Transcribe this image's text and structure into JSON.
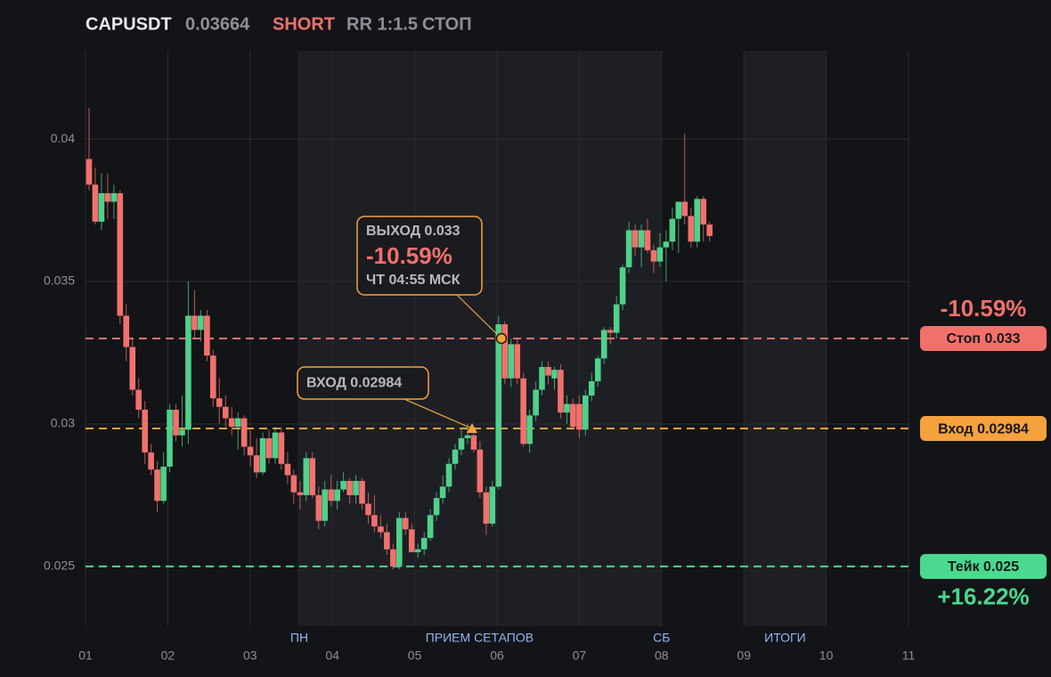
{
  "header": {
    "symbol": "CAPUSDT",
    "price": "0.03664",
    "side": "SHORT",
    "rr": "RR 1:1.5",
    "status": "СТОП"
  },
  "chart_data": {
    "type": "candlestick",
    "x": [
      1.043,
      1.118,
      1.194,
      1.269,
      1.345,
      1.42,
      1.495,
      1.571,
      1.646,
      1.722,
      1.797,
      1.872,
      1.948,
      2.023,
      2.099,
      2.174,
      2.249,
      2.325,
      2.4,
      2.476,
      2.551,
      2.626,
      2.702,
      2.777,
      2.853,
      2.928,
      3.003,
      3.079,
      3.154,
      3.23,
      3.305,
      3.38,
      3.456,
      3.531,
      3.607,
      3.682,
      3.757,
      3.833,
      3.908,
      3.984,
      4.059,
      4.134,
      4.21,
      4.285,
      4.361,
      4.436,
      4.511,
      4.587,
      4.662,
      4.738,
      4.813,
      4.888,
      4.964,
      5.039,
      5.115,
      5.19,
      5.265,
      5.341,
      5.416,
      5.492,
      5.567,
      5.642,
      5.718,
      5.793,
      5.869,
      5.944,
      6.019,
      6.095,
      6.17,
      6.246,
      6.321,
      6.396,
      6.472,
      6.547,
      6.623,
      6.698,
      6.773,
      6.849,
      6.924,
      7.0,
      7.075,
      7.15,
      7.226,
      7.301,
      7.377,
      7.452,
      7.527,
      7.603,
      7.678,
      7.754,
      7.829,
      7.904,
      7.98,
      8.055,
      8.131,
      8.206,
      8.281,
      8.357,
      8.432,
      8.508,
      8.583
    ],
    "open": [
      0.0393,
      0.0384,
      0.0371,
      0.0381,
      0.0378,
      0.0381,
      0.0338,
      0.0327,
      0.0312,
      0.0305,
      0.029,
      0.0284,
      0.0273,
      0.0285,
      0.0305,
      0.0296,
      0.0298,
      0.0338,
      0.0333,
      0.0338,
      0.0324,
      0.0309,
      0.0306,
      0.0302,
      0.0299,
      0.0302,
      0.0292,
      0.0289,
      0.0283,
      0.0295,
      0.0288,
      0.0297,
      0.0286,
      0.0282,
      0.0276,
      0.0275,
      0.0288,
      0.0275,
      0.0266,
      0.0277,
      0.0273,
      0.0277,
      0.028,
      0.0275,
      0.028,
      0.0272,
      0.0268,
      0.0264,
      0.0262,
      0.0256,
      0.025,
      0.0267,
      0.0263,
      0.0255,
      0.0256,
      0.026,
      0.0268,
      0.0274,
      0.0278,
      0.0286,
      0.0291,
      0.0295,
      0.0296,
      0.0291,
      0.0276,
      0.0265,
      0.0278,
      0.0335,
      0.0316,
      0.0328,
      0.0316,
      0.0293,
      0.0303,
      0.0312,
      0.032,
      0.0316,
      0.0319,
      0.0304,
      0.0307,
      0.0307,
      0.0298,
      0.031,
      0.0315,
      0.0323,
      0.0333,
      0.0332,
      0.0342,
      0.0355,
      0.0368,
      0.0362,
      0.0368,
      0.0361,
      0.0357,
      0.0362,
      0.0364,
      0.0372,
      0.0378,
      0.0373,
      0.0364,
      0.0379,
      0.037
    ],
    "high": [
      0.0411,
      0.039,
      0.0388,
      0.0388,
      0.0384,
      0.0382,
      0.0342,
      0.033,
      0.0316,
      0.0308,
      0.0293,
      0.0287,
      0.029,
      0.0307,
      0.0307,
      0.031,
      0.035,
      0.0347,
      0.034,
      0.034,
      0.0326,
      0.0316,
      0.031,
      0.0306,
      0.0304,
      0.0303,
      0.0298,
      0.0295,
      0.0297,
      0.0298,
      0.0299,
      0.0299,
      0.029,
      0.0284,
      0.028,
      0.029,
      0.029,
      0.0278,
      0.028,
      0.0282,
      0.028,
      0.0283,
      0.0281,
      0.0282,
      0.0281,
      0.0276,
      0.0275,
      0.0268,
      0.0265,
      0.0258,
      0.0269,
      0.0269,
      0.0265,
      0.0258,
      0.0262,
      0.027,
      0.0276,
      0.0282,
      0.0288,
      0.0293,
      0.0298,
      0.03,
      0.0298,
      0.0294,
      0.0278,
      0.028,
      0.0338,
      0.0336,
      0.033,
      0.033,
      0.0318,
      0.0305,
      0.0315,
      0.0322,
      0.0322,
      0.032,
      0.0321,
      0.031,
      0.0309,
      0.031,
      0.0312,
      0.0318,
      0.0324,
      0.0334,
      0.0334,
      0.0345,
      0.0356,
      0.0371,
      0.037,
      0.037,
      0.0372,
      0.0363,
      0.0367,
      0.0368,
      0.0376,
      0.0378,
      0.0402,
      0.0376,
      0.038,
      0.038,
      0.0371
    ],
    "low": [
      0.0382,
      0.037,
      0.0368,
      0.0372,
      0.0372,
      0.0335,
      0.0322,
      0.031,
      0.0302,
      0.0286,
      0.0282,
      0.0269,
      0.0272,
      0.0283,
      0.0294,
      0.0292,
      0.0293,
      0.033,
      0.0329,
      0.0322,
      0.0306,
      0.03,
      0.0299,
      0.0296,
      0.0291,
      0.0289,
      0.0285,
      0.0281,
      0.0282,
      0.0286,
      0.0286,
      0.0284,
      0.0279,
      0.0272,
      0.027,
      0.0273,
      0.0274,
      0.0263,
      0.0264,
      0.0271,
      0.027,
      0.0276,
      0.0272,
      0.0272,
      0.027,
      0.0265,
      0.0262,
      0.026,
      0.0254,
      0.0249,
      0.0249,
      0.0261,
      0.0255,
      0.0253,
      0.0254,
      0.0259,
      0.0266,
      0.0272,
      0.0276,
      0.0284,
      0.0289,
      0.0293,
      0.029,
      0.0274,
      0.0261,
      0.0264,
      0.0277,
      0.0314,
      0.0313,
      0.0314,
      0.0292,
      0.029,
      0.0301,
      0.031,
      0.0314,
      0.0312,
      0.0302,
      0.03,
      0.0298,
      0.0295,
      0.0296,
      0.0308,
      0.0313,
      0.0321,
      0.0328,
      0.033,
      0.034,
      0.0353,
      0.0359,
      0.0355,
      0.036,
      0.0353,
      0.0355,
      0.035,
      0.0361,
      0.036,
      0.037,
      0.0362,
      0.0362,
      0.0364,
      0.0364
    ],
    "close": [
      0.0384,
      0.0371,
      0.0381,
      0.0378,
      0.0381,
      0.0338,
      0.0327,
      0.0312,
      0.0305,
      0.029,
      0.0284,
      0.0273,
      0.0285,
      0.0305,
      0.0296,
      0.0298,
      0.0338,
      0.0333,
      0.0338,
      0.0324,
      0.0309,
      0.0306,
      0.0302,
      0.0299,
      0.0302,
      0.0292,
      0.0289,
      0.0283,
      0.0295,
      0.0288,
      0.0297,
      0.0286,
      0.0282,
      0.0276,
      0.0275,
      0.0288,
      0.0275,
      0.0266,
      0.0277,
      0.0273,
      0.0277,
      0.028,
      0.0275,
      0.028,
      0.0272,
      0.0268,
      0.0264,
      0.0262,
      0.0256,
      0.025,
      0.0267,
      0.0263,
      0.0255,
      0.0256,
      0.026,
      0.0268,
      0.0274,
      0.0278,
      0.0286,
      0.0291,
      0.0295,
      0.0296,
      0.0291,
      0.0276,
      0.0265,
      0.0278,
      0.0335,
      0.0316,
      0.0328,
      0.0316,
      0.0293,
      0.0303,
      0.0312,
      0.032,
      0.0317,
      0.0319,
      0.0304,
      0.0307,
      0.0299,
      0.0298,
      0.031,
      0.0315,
      0.0323,
      0.0333,
      0.0332,
      0.0342,
      0.0355,
      0.0368,
      0.0362,
      0.0368,
      0.0361,
      0.0357,
      0.0362,
      0.0364,
      0.0372,
      0.0378,
      0.0373,
      0.0364,
      0.0379,
      0.037,
      0.0366
    ],
    "up_color": "#4fd18b",
    "down_color": "#f0716d",
    "xlim": [
      1,
      11
    ],
    "xticks": [
      {
        "value": 1,
        "label": "01"
      },
      {
        "value": 2,
        "label": "02"
      },
      {
        "value": 3,
        "label": "03"
      },
      {
        "value": 4,
        "label": "04"
      },
      {
        "value": 5,
        "label": "05"
      },
      {
        "value": 6,
        "label": "06"
      },
      {
        "value": 7,
        "label": "07"
      },
      {
        "value": 8,
        "label": "08"
      },
      {
        "value": 9,
        "label": "09"
      },
      {
        "value": 10,
        "label": "10"
      },
      {
        "value": 11,
        "label": "11"
      }
    ],
    "ylim": [
      0.0229,
      0.0431
    ],
    "yticks": [
      0.025,
      0.03,
      0.035,
      0.04
    ],
    "grid": true,
    "zones": [
      {
        "label": "ПРИЕМ СЕТАПОВ",
        "from": 3.576,
        "to": 8,
        "start_label": "ПН",
        "end_label": "СБ"
      },
      {
        "label": "ИТОГИ",
        "from": 9,
        "to": 10
      }
    ],
    "levels": [
      {
        "label": "Стоп 0.033",
        "value": 0.033,
        "color": "#f2706c",
        "change": "-10.59%"
      },
      {
        "label": "Вход 0.02984",
        "value": 0.02984,
        "color": "#f5a23c"
      },
      {
        "label": "Тейк 0.025",
        "value": 0.025,
        "color": "#4ad98e",
        "change": "+16.22%"
      }
    ],
    "annotations": [
      {
        "marker": "circle",
        "x": 6.054,
        "y": 0.033,
        "lines": [
          "ВЫХОД 0.033",
          "-10.59%",
          "ЧТ 04:55 МСК"
        ]
      },
      {
        "marker": "triangle",
        "x": 5.697,
        "y": 0.02984,
        "lines": [
          "ВХОД 0.02984"
        ]
      }
    ]
  }
}
